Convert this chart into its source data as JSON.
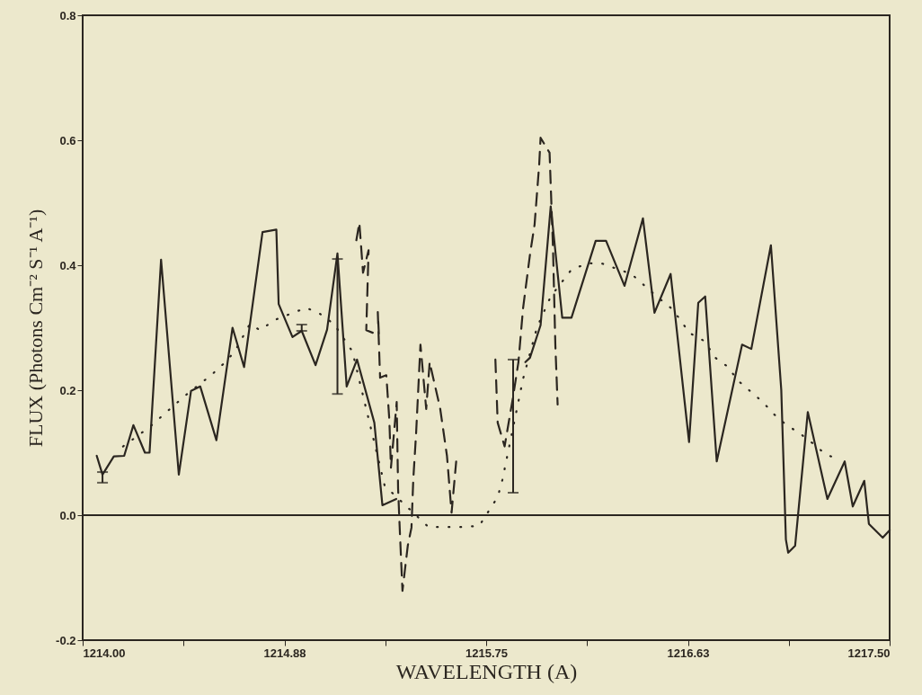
{
  "chart_data": {
    "type": "line",
    "xlabel": "WAVELENGTH (A)",
    "ylabel": "FLUX (Photons Cm⁻² S⁻¹ A⁻¹)",
    "xlim": [
      1214.0,
      1217.5
    ],
    "ylim": [
      -0.2,
      0.8
    ],
    "xticks": [
      {
        "value": 1214.0,
        "label": "1214.00"
      },
      {
        "value": 1214.4375,
        "label": null
      },
      {
        "value": 1214.875,
        "label": "1214.88"
      },
      {
        "value": 1215.3125,
        "label": null
      },
      {
        "value": 1215.75,
        "label": "1215.75"
      },
      {
        "value": 1216.1875,
        "label": null
      },
      {
        "value": 1216.625,
        "label": "1216.63"
      },
      {
        "value": 1217.0625,
        "label": null
      },
      {
        "value": 1217.5,
        "label": "1217.50"
      }
    ],
    "yticks": [
      {
        "value": -0.2,
        "label": "-0.2"
      },
      {
        "value": 0.0,
        "label": "0.0"
      },
      {
        "value": 0.2,
        "label": "0.2"
      },
      {
        "value": 0.4,
        "label": "0.4"
      },
      {
        "value": 0.6,
        "label": "0.6"
      },
      {
        "value": 0.8,
        "label": "0.8"
      }
    ],
    "grid": false,
    "ref_lines": [
      {
        "axis": "y",
        "value": 0,
        "color": "#2b2620",
        "line_style": "solid"
      }
    ],
    "series": [
      {
        "line_style": "solid",
        "marker": "none",
        "color": "#2b2620",
        "x": [
          1214.061,
          1214.086,
          1214.135,
          1214.18,
          1214.22,
          1214.27,
          1214.29,
          1214.34,
          1214.417,
          1214.47,
          1214.51,
          1214.58,
          1214.65,
          1214.7,
          1214.78,
          1214.84,
          1214.85,
          1214.91,
          1214.95,
          1215.01,
          1215.06,
          1215.105,
          1215.145,
          1215.19,
          1215.265,
          1215.3,
          1215.36,
          1215.6,
          1215.92,
          1215.94,
          1215.986,
          1216.03,
          1216.08,
          1216.12,
          1216.225,
          1216.27,
          1216.35,
          1216.43,
          1216.48,
          1216.55,
          1216.63,
          1216.67,
          1216.7,
          1216.75,
          1216.86,
          1216.9,
          1216.985,
          1217.03,
          1217.05,
          1217.06,
          1217.09,
          1217.145,
          1217.23,
          1217.305,
          1217.34,
          1217.39,
          1217.41,
          1217.47,
          1217.5
        ],
        "values": [
          0.095,
          0.065,
          0.094,
          0.095,
          0.144,
          0.1,
          0.1,
          0.409,
          0.065,
          0.199,
          0.206,
          0.12,
          0.3,
          0.237,
          0.453,
          0.457,
          0.338,
          0.285,
          0.295,
          0.24,
          0.297,
          0.419,
          0.206,
          0.249,
          0.148,
          0.016,
          0.026,
          null,
          0.245,
          0.252,
          0.304,
          0.494,
          0.316,
          0.316,
          0.439,
          0.439,
          0.367,
          0.475,
          0.324,
          0.386,
          0.117,
          0.34,
          0.35,
          0.086,
          0.273,
          0.266,
          0.432,
          0.2,
          -0.039,
          -0.06,
          -0.049,
          0.165,
          0.026,
          0.086,
          0.014,
          0.055,
          -0.014,
          -0.036,
          -0.024
        ],
        "errors": [
          null,
          [
            0.052,
            0.069
          ],
          null,
          null,
          null,
          null,
          null,
          null,
          null,
          null,
          null,
          null,
          null,
          null,
          null,
          null,
          null,
          null,
          [
            0.295,
            0.305
          ],
          null,
          null,
          [
            0.194,
            0.41
          ],
          null,
          null,
          null,
          null,
          null,
          null,
          null,
          null,
          null,
          null,
          null,
          null,
          null,
          null,
          null,
          null,
          null,
          null,
          null,
          null,
          null,
          null,
          null,
          null,
          null,
          null,
          null,
          null,
          null,
          null,
          null,
          null,
          null,
          null,
          null,
          null,
          null
        ]
      },
      {
        "line_style": "dashed",
        "marker": "none",
        "color": "#2b2620",
        "x": [
          1215.187,
          1215.2,
          1215.216,
          1215.24,
          1215.23,
          1215.285,
          1215.28,
          1215.29,
          1215.317,
          1215.33,
          1215.337,
          1215.362,
          1215.368,
          1215.376,
          1215.387,
          1215.41,
          1215.426,
          1215.434,
          1215.446,
          1215.465,
          1215.49,
          1215.505,
          1215.52,
          1215.55,
          1215.58,
          1215.6,
          1215.62,
          1215.7,
          1215.79,
          1215.8,
          1215.83,
          1215.867,
          1215.89,
          1215.91,
          1215.94,
          1215.96,
          1215.98,
          1215.986,
          1216.025,
          1216.04,
          1216.05,
          1216.06
        ],
        "values": [
          0.44,
          0.468,
          0.388,
          0.424,
          0.296,
          0.288,
          0.325,
          0.22,
          0.224,
          0.153,
          0.076,
          0.181,
          0.043,
          -0.029,
          -0.121,
          -0.049,
          -0.02,
          0.058,
          0.13,
          0.273,
          0.17,
          0.245,
          0.22,
          0.172,
          0.095,
          0.004,
          0.086,
          null,
          0.249,
          0.148,
          0.11,
          0.19,
          0.245,
          0.331,
          0.417,
          0.465,
          0.561,
          0.604,
          0.58,
          0.426,
          0.273,
          0.177
        ],
        "errors": [
          null,
          null,
          null,
          null,
          null,
          null,
          null,
          null,
          null,
          null,
          null,
          null,
          null,
          null,
          null,
          null,
          null,
          null,
          null,
          null,
          null,
          null,
          null,
          null,
          null,
          null,
          null,
          null,
          null,
          null,
          null,
          [
            0.036,
            0.249
          ],
          null,
          null,
          null,
          null,
          null,
          null,
          null,
          null,
          null,
          null
        ]
      },
      {
        "line_style": "dotted",
        "marker": "none",
        "color": "#2b2620",
        "x": [
          1214.175,
          1214.29,
          1214.4,
          1214.45,
          1214.56,
          1214.61,
          1214.66,
          1214.725,
          1214.77,
          1214.83,
          1214.9,
          1214.97,
          1215.03,
          1215.09,
          1215.17,
          1215.31,
          1215.5,
          1215.58,
          1215.65,
          1215.72,
          1215.8,
          1215.82,
          1215.835,
          1215.91,
          1215.97,
          1216.03,
          1216.12,
          1216.19,
          1216.25,
          1216.38,
          1216.49,
          1216.55,
          1216.59,
          1216.63,
          1216.7,
          1216.74,
          1216.8,
          1216.84,
          1216.9,
          1216.95,
          1217.0,
          1217.05,
          1217.11,
          1217.17,
          1217.22,
          1217.285
        ],
        "values": [
          0.11,
          0.141,
          0.177,
          0.193,
          0.225,
          0.242,
          0.262,
          0.306,
          0.296,
          0.312,
          0.322,
          0.332,
          0.322,
          0.306,
          0.262,
          0.047,
          -0.019,
          -0.019,
          -0.019,
          -0.017,
          0.029,
          0.056,
          0.083,
          0.218,
          0.3,
          0.35,
          0.393,
          0.403,
          0.403,
          0.386,
          0.35,
          0.332,
          0.314,
          0.292,
          0.278,
          0.253,
          0.237,
          0.216,
          0.197,
          0.181,
          0.161,
          0.145,
          0.131,
          0.114,
          0.098,
          0.088
        ]
      }
    ]
  }
}
